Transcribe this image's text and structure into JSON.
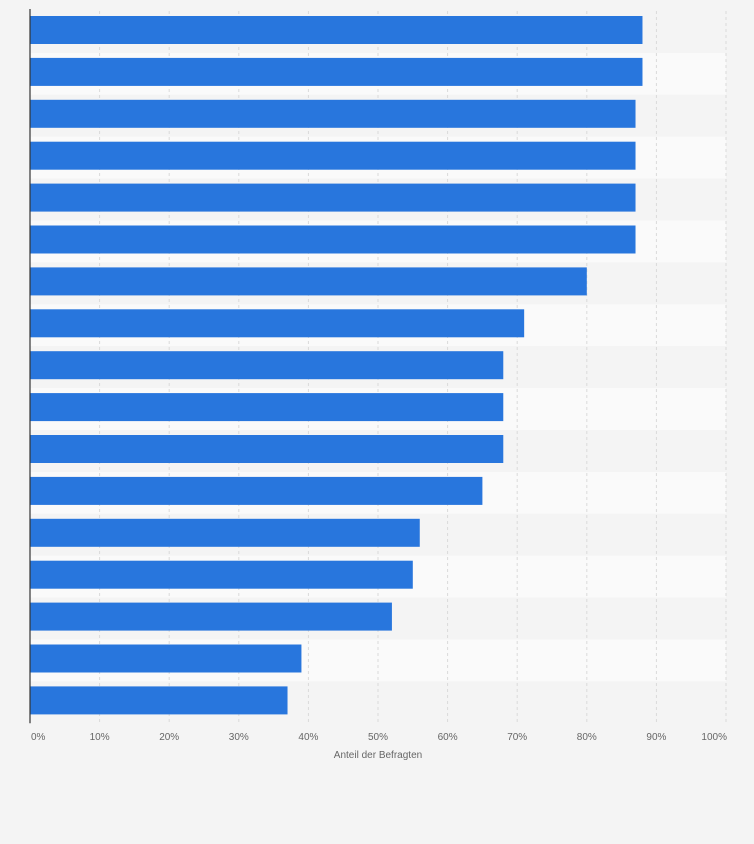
{
  "chart_data": {
    "type": "bar",
    "orientation": "horizontal",
    "categories": [
      "",
      "",
      "",
      "",
      "",
      "",
      "",
      "",
      "",
      "",
      "",
      "",
      "",
      "",
      "",
      "",
      ""
    ],
    "values": [
      88,
      88,
      87,
      87,
      87,
      87,
      80,
      71,
      68,
      68,
      68,
      65,
      56,
      55,
      52,
      39,
      37
    ],
    "xlabel": "Anteil der Befragten",
    "xlim": [
      0,
      100
    ],
    "xticks": [
      "0%",
      "10%",
      "20%",
      "30%",
      "40%",
      "50%",
      "60%",
      "70%",
      "80%",
      "90%",
      "100%"
    ],
    "bar_color": "#2876dd",
    "grid": true
  }
}
